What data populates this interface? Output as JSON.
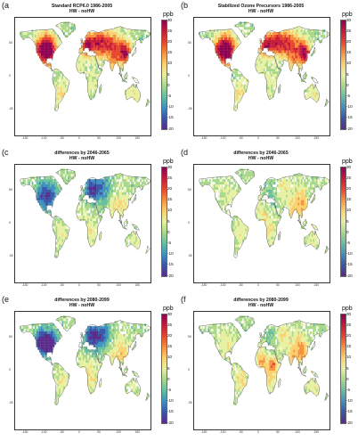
{
  "figure": {
    "unit": "ppb",
    "colorbar_ticks": [
      "30",
      "25",
      "20",
      "15",
      "10",
      "5",
      "0",
      "-5",
      "-10",
      "-15",
      "-20"
    ],
    "colorbar_colors": [
      "#8e0152",
      "#c51b3b",
      "#e8452e",
      "#f6913f",
      "#fbd06e",
      "#e8f0a2",
      "#a7d88a",
      "#66bea1",
      "#3f8fc0",
      "#3a56a6",
      "#5a2a8a"
    ],
    "x_ticks": [
      "-150",
      "-100",
      "-50",
      "0",
      "50",
      "100",
      "150"
    ],
    "y_ticks": [
      "50",
      "0",
      "-50"
    ],
    "land_color": "#f2f2f2",
    "coast_color": "#555555"
  },
  "panels": [
    {
      "label": "(a",
      "title_line1": "Standard RCP6.0 1986-2005",
      "title_line2": "HW - noHW",
      "scheme": "base_std"
    },
    {
      "label": "(b",
      "title_line1": "Stabilized Ozone Precursors 1986-2005",
      "title_line2": "HW - noHW",
      "scheme": "base_stab"
    },
    {
      "label": "(c",
      "title_line1": "differences by 2046-2065",
      "title_line2": "HW - noHW",
      "scheme": "diff_mid_std"
    },
    {
      "label": "(d",
      "title_line1": "differences by 2046-2065",
      "title_line2": "HW - noHW",
      "scheme": "diff_mid_stab"
    },
    {
      "label": "(e",
      "title_line1": "differences by 2080-2099",
      "title_line2": "HW - noHW",
      "scheme": "diff_late_std"
    },
    {
      "label": "(f",
      "title_line1": "differences by 2080-2099",
      "title_line2": "HW - noHW",
      "scheme": "diff_late_stab"
    }
  ]
}
